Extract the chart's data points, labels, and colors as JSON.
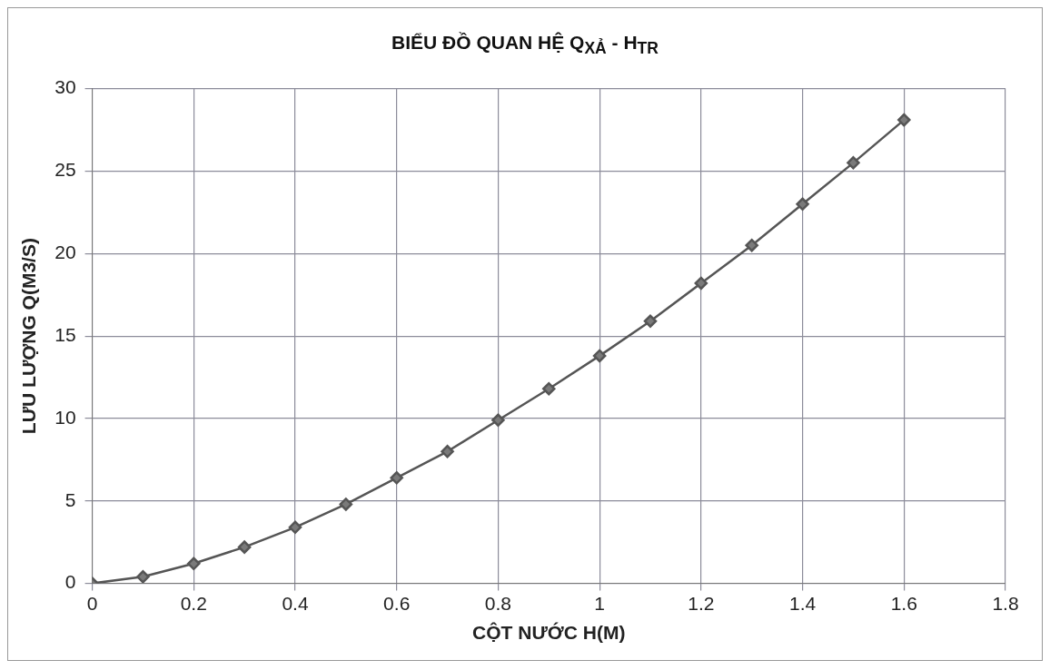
{
  "chart_data": {
    "type": "line",
    "title": "BIỂU ĐỒ QUAN HỆ Q$_{XẢ}$ - H$_{TR}$",
    "xlabel": "CỘT NƯỚC H(M)",
    "ylabel": "LƯU LƯỢNG Q(M3/S)",
    "x": [
      0,
      0.1,
      0.2,
      0.3,
      0.4,
      0.5,
      0.6,
      0.7,
      0.8,
      0.9,
      1.0,
      1.1,
      1.2,
      1.3,
      1.4,
      1.5,
      1.6
    ],
    "series": [
      {
        "color": "#555555",
        "values": [
          0,
          0.4,
          1.2,
          2.2,
          3.4,
          4.8,
          6.4,
          8.0,
          9.9,
          11.8,
          13.8,
          15.9,
          18.2,
          20.5,
          23.0,
          25.5,
          28.1
        ]
      }
    ],
    "xlim": [
      0,
      1.8
    ],
    "xticks": [
      0,
      0.2,
      0.4,
      0.6,
      0.8,
      1,
      1.2,
      1.4,
      1.6,
      1.8
    ],
    "ylim": [
      0,
      30
    ],
    "yticks": [
      0,
      5,
      10,
      15,
      20,
      25,
      30
    ],
    "grid": true,
    "legend": false,
    "marker": "diamond",
    "line_style": "solid"
  }
}
